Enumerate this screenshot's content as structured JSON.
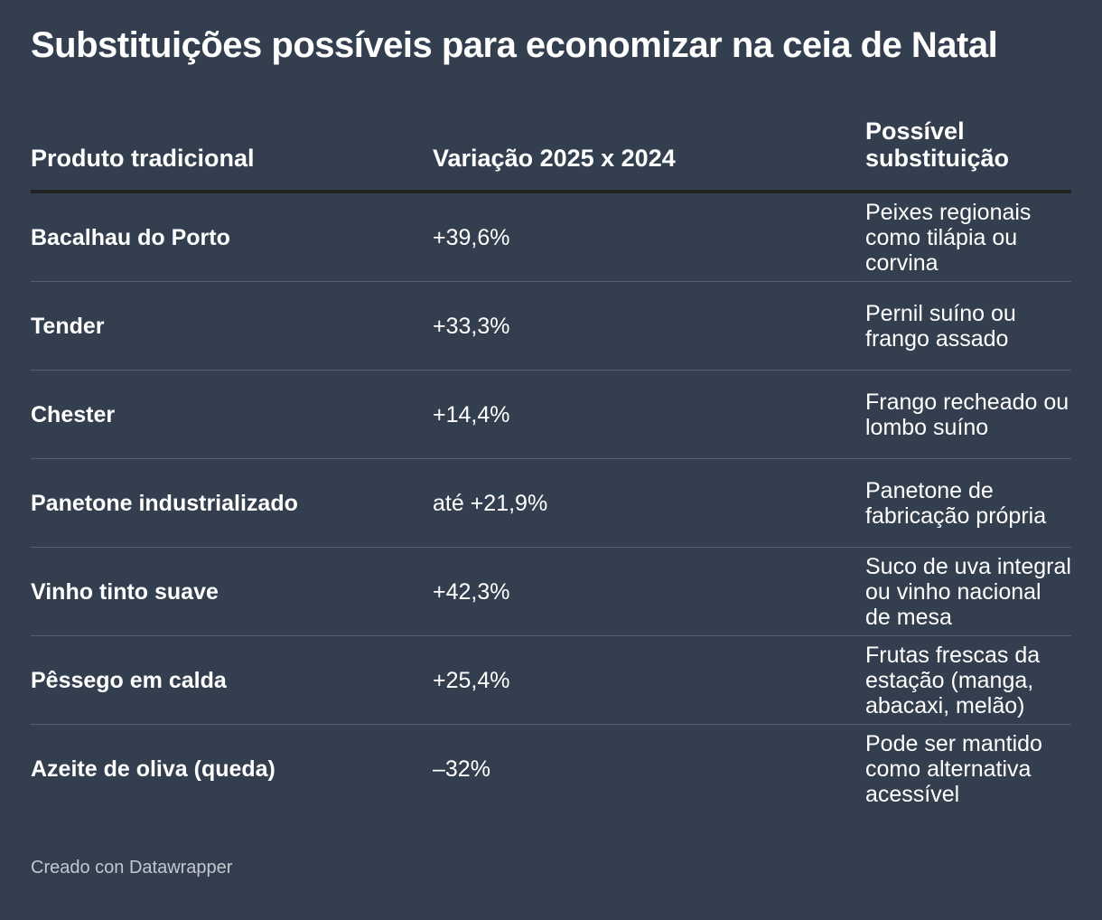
{
  "header": {
    "title": "Substituições possíveis para economizar na ceia de Natal"
  },
  "table": {
    "columns": [
      "Produto tradicional",
      "Variação 2025 x 2024",
      "Possível substituição"
    ],
    "rows": [
      [
        "Bacalhau do Porto",
        "+39,6%",
        "Peixes regionais como tilápia ou corvina"
      ],
      [
        "Tender",
        "+33,3%",
        "Pernil suíno ou frango assado"
      ],
      [
        "Chester",
        "+14,4%",
        "Frango recheado ou lombo suíno"
      ],
      [
        "Panetone industrializado",
        "até +21,9%",
        "Panetone de fabricação própria"
      ],
      [
        "Vinho tinto suave",
        "+42,3%",
        "Suco de uva integral ou vinho nacional de mesa"
      ],
      [
        "Pêssego em calda",
        "+25,4%",
        "Frutas frescas da estação (manga, abacaxi, melão)"
      ],
      [
        "Azeite de oliva (queda)",
        "–32%",
        "Pode ser mantido como alternativa acessível"
      ]
    ]
  },
  "footer": {
    "credit": "Creado con Datawrapper"
  }
}
